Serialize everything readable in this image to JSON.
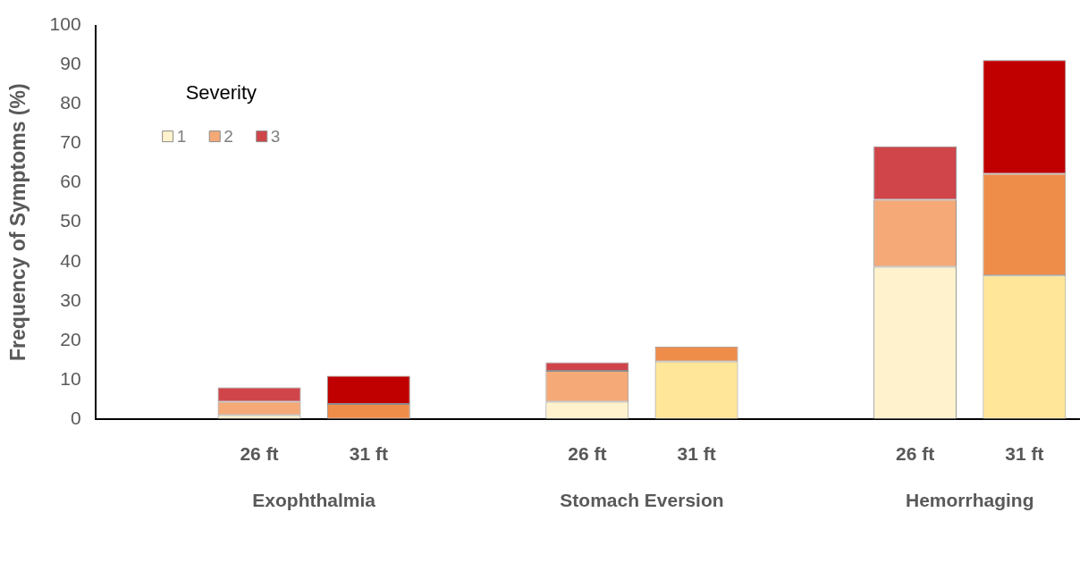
{
  "chart_data": {
    "type": "bar",
    "stacked": true,
    "ylabel": "Frequency of Symptoms (%)",
    "legend_title": "Severity",
    "legend": "top left",
    "grid": false,
    "categories": [
      null,
      "26 ft",
      "31 ft",
      null,
      "26 ft",
      "31 ft",
      null,
      "26 ft",
      "31 ft"
    ],
    "annotations": [
      "Exophthalmia",
      "Stomach Eversion",
      "Hemorrhaging"
    ],
    "ylim": [
      0,
      100
    ],
    "yticks": [
      0,
      10,
      20,
      30,
      40,
      50,
      60,
      70,
      80,
      90,
      100
    ],
    "series": [
      {
        "name": "1",
        "color": "#fff2cc",
        "colors": [
          null,
          "#fff2cc",
          "#ffe699",
          null,
          "#fff2cc",
          "#ffe699",
          null,
          "#fff2cc",
          "#ffe699"
        ],
        "values": [
          null,
          1,
          0,
          null,
          4.4,
          14.6,
          null,
          38.7,
          36.5
        ]
      },
      {
        "name": "2",
        "color": "#f4a977",
        "colors": [
          null,
          "#f4a977",
          "#ee8c4a",
          null,
          "#f4a977",
          "#ee8c4a",
          null,
          "#f4a977",
          "#ee8c4a"
        ],
        "values": [
          null,
          3.4,
          3.8,
          null,
          7.8,
          3.8,
          null,
          17,
          25.8
        ]
      },
      {
        "name": "3",
        "color": "#d0454a",
        "colors": [
          null,
          "#d0454a",
          "#c00000",
          null,
          "#d0454a",
          "#c00000",
          null,
          "#d0454a",
          "#c00000"
        ],
        "values": [
          null,
          3.6,
          7.2,
          null,
          2.2,
          0,
          null,
          13.6,
          28.9
        ]
      }
    ]
  }
}
